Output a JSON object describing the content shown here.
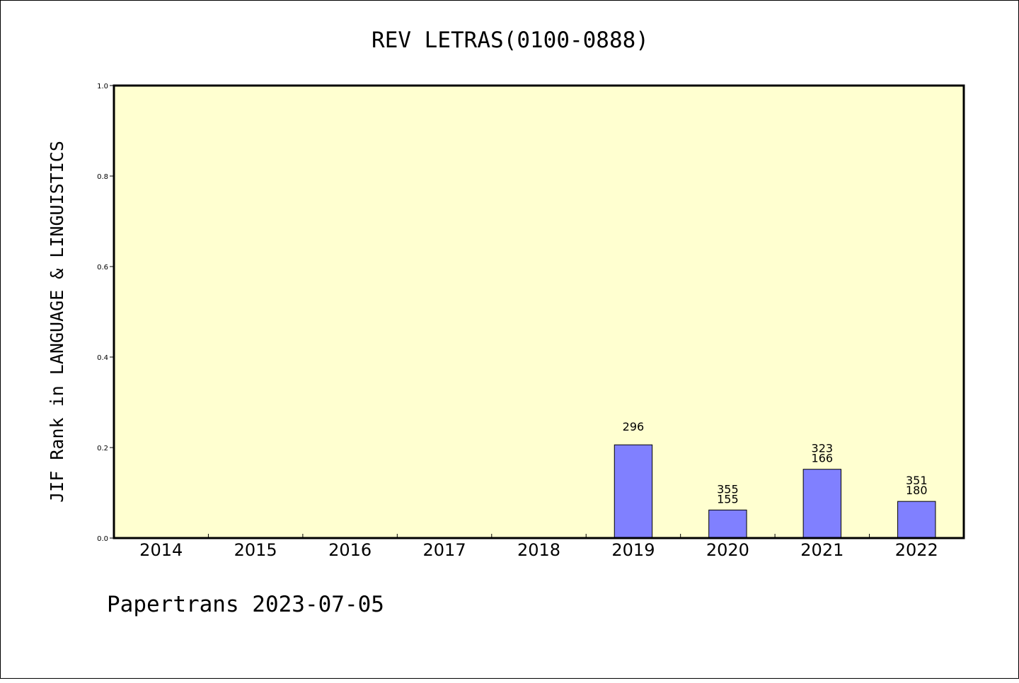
{
  "chart_data": {
    "type": "bar",
    "title": "REV LETRAS(0100-0888)",
    "ylabel": "JIF Rank in LANGUAGE & LINGUISTICS",
    "xlabel": "",
    "ylim": [
      0,
      1.0
    ],
    "yticks": [
      "0.0",
      "0.2",
      "0.4",
      "0.6",
      "0.8",
      "1.0"
    ],
    "grid": false,
    "categories": [
      "2014",
      "2015",
      "2016",
      "2017",
      "2018",
      "2019",
      "2020",
      "2021",
      "2022"
    ],
    "values": [
      null,
      null,
      null,
      null,
      null,
      0.206,
      0.062,
      0.152,
      0.081
    ],
    "bar_labels": [
      [],
      [],
      [],
      [],
      [],
      [
        "296"
      ],
      [
        "355",
        "155"
      ],
      [
        "323",
        "166"
      ],
      [
        "351",
        "180"
      ]
    ],
    "colors": {
      "plot_bg": "#ffffd0",
      "bar": "#8080ff",
      "axis": "#000000"
    }
  },
  "footer": {
    "text": "Papertrans 2023-07-05"
  }
}
